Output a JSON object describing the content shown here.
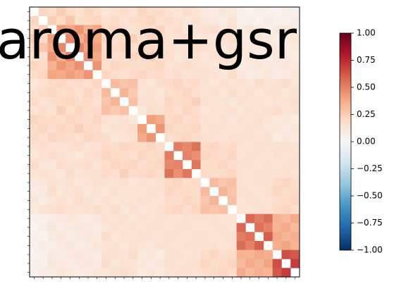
{
  "chart_data": {
    "type": "heatmap",
    "title": "aroma+gsr",
    "x_categories": [
      null,
      null,
      null,
      null,
      null,
      null,
      null,
      null,
      null,
      null,
      null,
      null,
      null,
      null,
      null,
      null,
      null,
      null,
      null,
      null,
      null,
      null,
      null,
      null,
      null,
      null,
      null,
      null,
      null,
      null
    ],
    "y_categories": [
      null,
      null,
      null,
      null,
      null,
      null,
      null,
      null,
      null,
      null,
      null,
      null,
      null,
      null,
      null,
      null,
      null,
      null,
      null,
      null,
      null,
      null,
      null,
      null,
      null,
      null,
      null,
      null,
      null,
      null
    ],
    "values": [
      [
        null,
        0.22,
        0.18,
        0.25,
        0.2,
        0.15,
        0.22,
        0.18,
        0.12,
        0.15,
        0.2,
        0.14,
        0.22,
        0.18,
        0.2,
        0.15,
        0.12,
        0.18,
        0.14,
        0.1,
        0.08,
        0.12,
        0.1,
        0.05,
        0.02,
        0.06,
        0.04,
        0.03,
        0.06,
        0.05
      ],
      [
        0.22,
        null,
        0.25,
        0.2,
        0.28,
        0.18,
        0.2,
        0.22,
        0.16,
        0.2,
        0.14,
        0.18,
        0.2,
        0.22,
        0.16,
        0.18,
        0.15,
        0.12,
        0.16,
        0.12,
        0.1,
        0.08,
        0.14,
        0.04,
        0.06,
        0.03,
        0.08,
        0.05,
        0.04,
        0.08
      ],
      [
        0.18,
        0.25,
        null,
        0.42,
        0.38,
        0.45,
        0.35,
        0.4,
        0.2,
        0.22,
        0.18,
        0.15,
        0.2,
        0.18,
        0.22,
        0.15,
        0.18,
        0.12,
        0.14,
        0.15,
        0.18,
        0.12,
        0.16,
        0.08,
        0.12,
        0.1,
        0.06,
        0.1,
        0.12,
        0.08
      ],
      [
        0.25,
        0.2,
        0.42,
        null,
        0.48,
        0.36,
        0.44,
        0.38,
        0.22,
        0.18,
        0.2,
        0.24,
        0.18,
        0.22,
        0.2,
        0.14,
        0.16,
        0.18,
        0.12,
        0.14,
        0.12,
        0.16,
        0.18,
        0.1,
        0.08,
        0.12,
        0.1,
        0.08,
        0.1,
        0.12
      ],
      [
        0.2,
        0.28,
        0.38,
        0.48,
        null,
        0.5,
        0.4,
        0.42,
        0.18,
        0.2,
        0.22,
        0.16,
        0.22,
        0.2,
        0.18,
        0.16,
        0.14,
        0.15,
        0.18,
        0.16,
        0.14,
        0.12,
        0.15,
        0.12,
        0.1,
        0.08,
        0.12,
        0.1,
        0.08,
        0.1
      ],
      [
        0.15,
        0.18,
        0.45,
        0.36,
        0.5,
        null,
        0.46,
        0.38,
        0.2,
        0.16,
        0.18,
        0.22,
        0.2,
        0.24,
        0.16,
        0.18,
        0.12,
        0.16,
        0.14,
        0.12,
        0.16,
        0.18,
        0.14,
        0.1,
        0.12,
        0.1,
        0.08,
        0.12,
        0.1,
        0.08
      ],
      [
        0.22,
        0.2,
        0.35,
        0.44,
        0.4,
        0.46,
        null,
        0.45,
        0.16,
        0.22,
        0.2,
        0.18,
        0.18,
        0.2,
        0.22,
        0.14,
        0.16,
        0.18,
        0.15,
        0.14,
        0.12,
        0.15,
        0.16,
        0.08,
        0.1,
        0.12,
        0.1,
        0.1,
        0.12,
        0.1
      ],
      [
        0.18,
        0.22,
        0.4,
        0.38,
        0.42,
        0.38,
        0.45,
        null,
        0.22,
        0.18,
        0.16,
        0.2,
        0.22,
        0.18,
        0.2,
        0.15,
        0.18,
        0.14,
        0.16,
        0.16,
        0.14,
        0.12,
        0.18,
        0.12,
        0.08,
        0.1,
        0.12,
        0.08,
        0.1,
        0.12
      ],
      [
        0.12,
        0.16,
        0.2,
        0.22,
        0.18,
        0.2,
        0.16,
        0.22,
        null,
        0.32,
        0.28,
        0.3,
        0.15,
        0.12,
        0.18,
        0.2,
        0.22,
        0.18,
        0.2,
        0.15,
        0.12,
        0.16,
        0.14,
        0.15,
        0.12,
        0.18,
        0.14,
        0.15,
        0.18,
        0.12
      ],
      [
        0.15,
        0.2,
        0.22,
        0.18,
        0.2,
        0.16,
        0.22,
        0.18,
        0.32,
        null,
        0.34,
        0.26,
        0.14,
        0.16,
        0.12,
        0.18,
        0.2,
        0.22,
        0.16,
        0.14,
        0.16,
        0.12,
        0.18,
        0.14,
        0.16,
        0.12,
        0.15,
        0.16,
        0.12,
        0.15
      ],
      [
        0.2,
        0.14,
        0.18,
        0.2,
        0.22,
        0.18,
        0.2,
        0.16,
        0.28,
        0.34,
        null,
        0.3,
        0.16,
        0.15,
        0.14,
        0.22,
        0.18,
        0.2,
        0.24,
        0.16,
        0.14,
        0.15,
        0.12,
        0.16,
        0.14,
        0.15,
        0.12,
        0.14,
        0.15,
        0.18
      ],
      [
        0.14,
        0.18,
        0.15,
        0.24,
        0.16,
        0.22,
        0.18,
        0.2,
        0.3,
        0.26,
        0.3,
        null,
        0.12,
        0.18,
        0.16,
        0.2,
        0.16,
        0.22,
        0.18,
        0.12,
        0.15,
        0.14,
        0.16,
        0.12,
        0.15,
        0.14,
        0.16,
        0.18,
        0.14,
        0.15
      ],
      [
        0.22,
        0.2,
        0.2,
        0.18,
        0.22,
        0.2,
        0.18,
        0.22,
        0.15,
        0.14,
        0.16,
        0.12,
        null,
        0.42,
        0.38,
        0.2,
        0.22,
        0.18,
        0.2,
        0.15,
        0.14,
        0.16,
        0.12,
        0.15,
        0.14,
        0.16,
        0.14,
        0.1,
        0.12,
        0.08
      ],
      [
        0.18,
        0.22,
        0.18,
        0.22,
        0.2,
        0.24,
        0.2,
        0.18,
        0.12,
        0.16,
        0.15,
        0.18,
        0.42,
        null,
        0.45,
        0.22,
        0.18,
        0.2,
        0.22,
        0.14,
        0.16,
        0.15,
        0.14,
        0.14,
        0.16,
        0.15,
        0.12,
        0.12,
        0.1,
        0.12
      ],
      [
        0.2,
        0.16,
        0.22,
        0.2,
        0.18,
        0.16,
        0.22,
        0.2,
        0.18,
        0.12,
        0.14,
        0.16,
        0.38,
        0.45,
        null,
        0.18,
        0.2,
        0.22,
        0.18,
        0.16,
        0.15,
        0.14,
        0.16,
        0.16,
        0.15,
        0.14,
        0.15,
        0.08,
        0.12,
        0.1
      ],
      [
        0.15,
        0.18,
        0.15,
        0.14,
        0.16,
        0.18,
        0.14,
        0.15,
        0.2,
        0.18,
        0.22,
        0.2,
        0.2,
        0.22,
        0.18,
        null,
        0.52,
        0.48,
        0.55,
        0.2,
        0.22,
        0.18,
        0.2,
        0.15,
        0.14,
        0.16,
        0.15,
        0.15,
        0.16,
        0.14
      ],
      [
        0.12,
        0.15,
        0.18,
        0.16,
        0.14,
        0.12,
        0.16,
        0.18,
        0.22,
        0.2,
        0.18,
        0.16,
        0.22,
        0.18,
        0.2,
        0.52,
        null,
        0.5,
        0.46,
        0.22,
        0.2,
        0.18,
        0.22,
        0.14,
        0.16,
        0.15,
        0.14,
        0.16,
        0.14,
        0.15
      ],
      [
        0.18,
        0.12,
        0.12,
        0.18,
        0.15,
        0.16,
        0.18,
        0.14,
        0.18,
        0.22,
        0.2,
        0.22,
        0.18,
        0.2,
        0.22,
        0.48,
        0.5,
        null,
        0.54,
        0.18,
        0.2,
        0.22,
        0.18,
        0.16,
        0.15,
        0.14,
        0.16,
        0.14,
        0.15,
        0.16
      ],
      [
        0.14,
        0.16,
        0.14,
        0.12,
        0.18,
        0.14,
        0.15,
        0.16,
        0.2,
        0.16,
        0.24,
        0.18,
        0.2,
        0.22,
        0.18,
        0.55,
        0.46,
        0.54,
        null,
        0.2,
        0.18,
        0.2,
        0.22,
        0.15,
        0.14,
        0.16,
        0.15,
        0.15,
        0.16,
        0.14
      ],
      [
        0.1,
        0.12,
        0.15,
        0.14,
        0.16,
        0.12,
        0.14,
        0.16,
        0.15,
        0.14,
        0.16,
        0.12,
        0.15,
        0.14,
        0.16,
        0.2,
        0.22,
        0.18,
        0.2,
        null,
        0.32,
        0.28,
        0.3,
        0.15,
        0.14,
        0.16,
        0.15,
        0.2,
        0.22,
        0.18
      ],
      [
        0.08,
        0.1,
        0.18,
        0.12,
        0.14,
        0.16,
        0.12,
        0.14,
        0.12,
        0.16,
        0.14,
        0.15,
        0.14,
        0.16,
        0.15,
        0.22,
        0.2,
        0.2,
        0.18,
        0.32,
        null,
        0.34,
        0.28,
        0.16,
        0.15,
        0.14,
        0.16,
        0.22,
        0.18,
        0.2
      ],
      [
        0.12,
        0.08,
        0.12,
        0.16,
        0.12,
        0.18,
        0.15,
        0.12,
        0.16,
        0.12,
        0.15,
        0.14,
        0.16,
        0.15,
        0.14,
        0.18,
        0.18,
        0.22,
        0.2,
        0.28,
        0.34,
        null,
        0.3,
        0.14,
        0.16,
        0.15,
        0.14,
        0.18,
        0.2,
        0.22
      ],
      [
        0.1,
        0.14,
        0.16,
        0.18,
        0.15,
        0.14,
        0.16,
        0.18,
        0.14,
        0.18,
        0.12,
        0.16,
        0.12,
        0.14,
        0.16,
        0.2,
        0.22,
        0.18,
        0.22,
        0.3,
        0.28,
        0.3,
        null,
        0.15,
        0.14,
        0.16,
        0.15,
        0.2,
        0.22,
        0.18
      ],
      [
        0.05,
        0.04,
        0.08,
        0.1,
        0.12,
        0.1,
        0.08,
        0.12,
        0.15,
        0.14,
        0.16,
        0.12,
        0.15,
        0.14,
        0.16,
        0.15,
        0.14,
        0.16,
        0.15,
        0.15,
        0.16,
        0.14,
        0.15,
        null,
        0.58,
        0.52,
        0.56,
        0.35,
        0.32,
        0.38
      ],
      [
        0.02,
        0.06,
        0.12,
        0.08,
        0.1,
        0.12,
        0.1,
        0.08,
        0.12,
        0.16,
        0.14,
        0.15,
        0.14,
        0.16,
        0.15,
        0.14,
        0.16,
        0.15,
        0.14,
        0.14,
        0.15,
        0.16,
        0.14,
        0.58,
        null,
        0.55,
        0.5,
        0.34,
        0.38,
        0.32
      ],
      [
        0.06,
        0.03,
        0.1,
        0.12,
        0.08,
        0.1,
        0.12,
        0.1,
        0.18,
        0.12,
        0.15,
        0.14,
        0.16,
        0.15,
        0.14,
        0.16,
        0.15,
        0.14,
        0.16,
        0.16,
        0.14,
        0.15,
        0.16,
        0.52,
        0.55,
        null,
        0.6,
        0.38,
        0.34,
        0.36
      ],
      [
        0.04,
        0.08,
        0.06,
        0.1,
        0.12,
        0.08,
        0.1,
        0.12,
        0.14,
        0.15,
        0.12,
        0.16,
        0.14,
        0.12,
        0.15,
        0.15,
        0.14,
        0.16,
        0.15,
        0.15,
        0.16,
        0.14,
        0.15,
        0.56,
        0.5,
        0.6,
        null,
        0.36,
        0.4,
        0.34
      ],
      [
        0.03,
        0.05,
        0.1,
        0.08,
        0.1,
        0.12,
        0.1,
        0.08,
        0.15,
        0.16,
        0.14,
        0.18,
        0.1,
        0.12,
        0.08,
        0.15,
        0.16,
        0.14,
        0.15,
        0.2,
        0.22,
        0.18,
        0.2,
        0.35,
        0.34,
        0.38,
        0.36,
        null,
        0.65,
        0.62
      ],
      [
        0.06,
        0.04,
        0.12,
        0.1,
        0.08,
        0.1,
        0.12,
        0.1,
        0.18,
        0.12,
        0.15,
        0.14,
        0.12,
        0.1,
        0.12,
        0.16,
        0.14,
        0.15,
        0.16,
        0.22,
        0.18,
        0.2,
        0.22,
        0.32,
        0.38,
        0.34,
        0.4,
        0.65,
        null,
        0.7
      ],
      [
        0.05,
        0.08,
        0.08,
        0.12,
        0.1,
        0.08,
        0.1,
        0.12,
        0.12,
        0.15,
        0.18,
        0.15,
        0.08,
        0.12,
        0.1,
        0.14,
        0.15,
        0.16,
        0.14,
        0.18,
        0.2,
        0.22,
        0.18,
        0.38,
        0.32,
        0.36,
        0.34,
        0.62,
        0.7,
        null
      ]
    ],
    "colorscale": [
      "#053061",
      "#2166ac",
      "#4393c3",
      "#92c5de",
      "#d1e5f0",
      "#f7f7f7",
      "#fddbc7",
      "#f4a582",
      "#d6604d",
      "#b2182b",
      "#67001f"
    ],
    "clim": [
      -1,
      1
    ],
    "cticks": [
      {
        "value": -1,
        "label": "−1.00"
      },
      {
        "value": -0.75,
        "label": "−0.75"
      },
      {
        "value": -0.5,
        "label": "−0.50"
      },
      {
        "value": -0.25,
        "label": "−0.25"
      },
      {
        "value": 0,
        "label": "0.00"
      },
      {
        "value": 0.25,
        "label": "0.25"
      },
      {
        "value": 0.5,
        "label": "0.50"
      },
      {
        "value": 0.75,
        "label": "0.75"
      },
      {
        "value": 1,
        "label": "1.00"
      }
    ]
  }
}
